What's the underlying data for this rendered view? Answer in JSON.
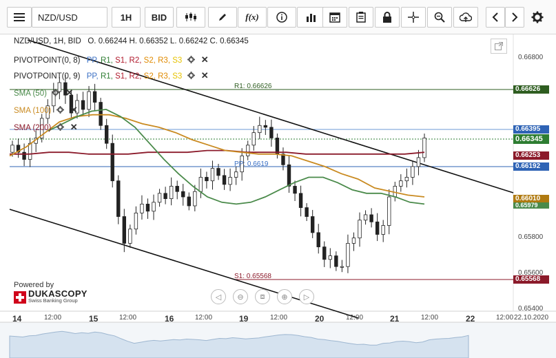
{
  "toolbar": {
    "symbol": "NZD/USD",
    "timeframe": "1H",
    "price_side": "BID",
    "icons": [
      "menu-icon",
      "candlestick-icon",
      "pencil-icon",
      "fx-icon",
      "info-icon",
      "bar-chart-icon",
      "calendar-icon",
      "clipboard-icon",
      "lock-icon",
      "crosshair-icon",
      "zoom-icon",
      "upload-icon",
      "chevron-left-icon",
      "chevron-right-icon",
      "gear-icon"
    ]
  },
  "header": {
    "title": "NZD/USD, 1H, BID",
    "ohlc": "O. 0.66244 H. 0.66352 L. 0.66242 C. 0.66345"
  },
  "indicators": [
    {
      "name": "PIVOTPOINT(0, 8)",
      "labels": [
        "PP,",
        "R1,",
        "S1,",
        "R2,",
        "S2,",
        "R3,",
        "S3"
      ]
    },
    {
      "name": "PIVOTPOINT(0, 9)",
      "labels": [
        "PP,",
        "R1,",
        "S1,",
        "R2,",
        "S2,",
        "R3,",
        "S3"
      ]
    }
  ],
  "indicator_colors": {
    "PP": "#3a6fc4",
    "R1": "#2e7d32",
    "S1": "#b0182b",
    "R2": "#b0182b",
    "S2": "#e08a00",
    "R3": "#e08a00",
    "S3": "#e6c200"
  },
  "smas": [
    {
      "name": "SMA (50)",
      "color": "#4a8a4a"
    },
    {
      "name": "SMA (100)",
      "color": "#c98a20"
    },
    {
      "name": "SMA (200)",
      "color": "#8b1a2a"
    }
  ],
  "pivot_labels": {
    "r1": "R1: 0.66626",
    "s1": "S1: 0.65568",
    "pp": "PP: 0.6619"
  },
  "price_badges": [
    {
      "value": "0.66626",
      "color": "#2e5d20"
    },
    {
      "value": "0.66395",
      "color": "#2e63b5"
    },
    {
      "value": "0.66345",
      "color": "#2e7d32"
    },
    {
      "value": "0.66253",
      "color": "#8b1a2a"
    },
    {
      "value": "0.66192",
      "color": "#2e63b5"
    },
    {
      "value": "0.66010",
      "color": "#b07a10"
    },
    {
      "value": "0.65979",
      "color": "#4a8a4a"
    },
    {
      "value": "0.65568",
      "color": "#8b1a2a"
    }
  ],
  "y_axis": [
    "0.66800",
    "0.65800",
    "0.65600",
    "0.65400"
  ],
  "x_axis": [
    "14",
    "12:00",
    "15",
    "12:00",
    "16",
    "12:00",
    "19",
    "12:00",
    "20",
    "12:00",
    "21",
    "12:00",
    "22",
    "12:00",
    "22.10.2020"
  ],
  "brand": {
    "powered_by": "Powered by",
    "name": "DUKASCOPY",
    "tagline": "Swiss Banking Group"
  },
  "chart_data": {
    "type": "candlestick",
    "title": "NZD/USD, 1H, BID",
    "ylim": [
      0.6537,
      0.6692
    ],
    "x_labels": [
      "14",
      "15",
      "16",
      "19",
      "20",
      "21",
      "22"
    ],
    "closes": [
      0.663,
      0.6626,
      0.6622,
      0.6631,
      0.6634,
      0.6645,
      0.6652,
      0.666,
      0.6665,
      0.6658,
      0.6648,
      0.6655,
      0.665,
      0.666,
      0.6654,
      0.6641,
      0.6631,
      0.661,
      0.659,
      0.6575,
      0.6583,
      0.6592,
      0.6597,
      0.6593,
      0.6598,
      0.6603,
      0.66,
      0.6607,
      0.6604,
      0.6601,
      0.6596,
      0.6604,
      0.6612,
      0.661,
      0.6617,
      0.6613,
      0.6608,
      0.6612,
      0.6615,
      0.6624,
      0.663,
      0.6637,
      0.6641,
      0.664,
      0.6634,
      0.6625,
      0.6619,
      0.6607,
      0.6603,
      0.6595,
      0.659,
      0.6581,
      0.6573,
      0.6566,
      0.6568,
      0.6562,
      0.6562,
      0.6575,
      0.6578,
      0.6588,
      0.6591,
      0.6587,
      0.658,
      0.6585,
      0.6601,
      0.6607,
      0.661,
      0.6612,
      0.6618,
      0.6623,
      0.6634
    ],
    "sma50": [
      0.6638,
      0.6642,
      0.6646,
      0.6649,
      0.665,
      0.6646,
      0.664,
      0.6631,
      0.6622,
      0.6614,
      0.6607,
      0.6601,
      0.6598,
      0.6597,
      0.6598,
      0.6601,
      0.6605,
      0.6609,
      0.6612,
      0.6612,
      0.6609,
      0.6605,
      0.6603,
      0.6603,
      0.6601,
      0.6598,
      0.6597
    ],
    "sma100": [
      0.6624,
      0.6629,
      0.6636,
      0.6643,
      0.6646,
      0.6647,
      0.6647,
      0.6645,
      0.6642,
      0.664,
      0.6637,
      0.6633,
      0.663,
      0.6627,
      0.6626,
      0.6625,
      0.6625,
      0.6624,
      0.6621,
      0.6618,
      0.6614,
      0.6611,
      0.6606,
      0.6604,
      0.6602,
      0.6601
    ],
    "sma200": [
      0.6625,
      0.6625,
      0.6626,
      0.6626,
      0.6625,
      0.6625,
      0.6625,
      0.6626,
      0.6626,
      0.6626,
      0.6627,
      0.6627,
      0.6626,
      0.6626,
      0.6626,
      0.6625,
      0.6625,
      0.6625,
      0.6625,
      0.6625,
      0.6625,
      0.6626
    ]
  }
}
